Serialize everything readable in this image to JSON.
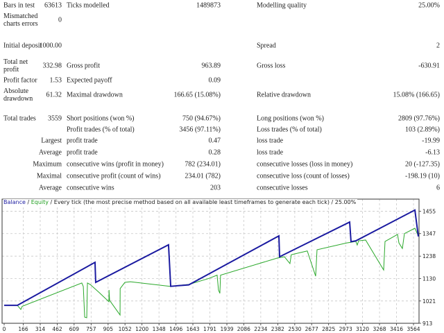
{
  "report": {
    "rows": [
      {
        "label1": "Bars in test",
        "value1": "63613",
        "label2": "Ticks modelled",
        "value2": "1489873",
        "label3": "Modelling quality",
        "value3": "25.00%"
      },
      {
        "label1": "Mismatched charts errors",
        "value1": "0"
      },
      {
        "label1": "Initial deposit",
        "value1": "1000.00",
        "label3": "Spread",
        "value3": "2"
      },
      {
        "label1": "Total net profit",
        "value1": "332.98",
        "label2": "Gross profit",
        "value2": "963.89",
        "label3": "Gross loss",
        "value3": "-630.91"
      },
      {
        "label1": "Profit factor",
        "value1": "1.53",
        "label2": "Expected payoff",
        "value2": "0.09"
      },
      {
        "label1": "Absolute drawdown",
        "value1": "61.32",
        "label2": "Maximal drawdown",
        "value2": "166.65 (15.08%)",
        "label3": "Relative drawdown",
        "value3": "15.08% (166.65)"
      },
      {
        "label1": "Total trades",
        "value1": "3559",
        "label2": "Short positions (won %)",
        "value2": "750 (94.67%)",
        "label3": "Long positions (won %)",
        "value3": "2809 (97.76%)"
      },
      {
        "label2": "Profit trades (% of total)",
        "value2": "3456 (97.11%)",
        "label3": "Loss trades (% of total)",
        "value3": "103 (2.89%)"
      },
      {
        "label1": "Largest",
        "label2": "profit trade",
        "value2": "0.47",
        "label3": "loss trade",
        "value3": "-19.99"
      },
      {
        "label1": "Average",
        "label2": "profit trade",
        "value2": "0.28",
        "label3": "loss trade",
        "value3": "-6.13"
      },
      {
        "label1": "Maximum",
        "label2": "consecutive wins (profit in money)",
        "value2": "782 (234.01)",
        "label3": "consecutive losses (loss in money)",
        "value3": "20 (-127.35)"
      },
      {
        "label1": "Maximal",
        "label2": "consecutive profit (count of wins)",
        "value2": "234.01 (782)",
        "label3": "consecutive loss (count of losses)",
        "value3": "-198.19 (10)"
      },
      {
        "label1": "Average",
        "label2": "consecutive wins",
        "value2": "203",
        "label3": "consecutive losses",
        "value3": "6"
      }
    ]
  },
  "chart_data": {
    "type": "line",
    "legend": {
      "balance": "Balance",
      "sep1": " / ",
      "equity": "Equity",
      "rest": " / Every tick (the most precise method based on all available least timeframes to generate each tick) / 25.00%"
    },
    "legend_placement": "top-left",
    "colors": {
      "balance": "#1a1aa0",
      "equity": "#2aa82a",
      "grid": "#c8c8c8"
    },
    "xlim": [
      0,
      3606
    ],
    "ylim": [
      913,
      1514
    ],
    "grid": true,
    "x_ticks": [
      "0",
      "166",
      "314",
      "462",
      "609",
      "757",
      "905",
      "1052",
      "1200",
      "1348",
      "1496",
      "1643",
      "1791",
      "1939",
      "2086",
      "2234",
      "2382",
      "2530",
      "2677",
      "2825",
      "2973",
      "3120",
      "3268",
      "3416",
      "3564"
    ],
    "y_ticks": [
      "913",
      "1021",
      "1130",
      "1238",
      "1347",
      "1455"
    ],
    "series": [
      {
        "name": "Balance",
        "points": [
          [
            0,
            1000
          ],
          [
            115,
            1000
          ],
          [
            791,
            1208
          ],
          [
            797,
            1111
          ],
          [
            1431,
            1293
          ],
          [
            1450,
            1092
          ],
          [
            1607,
            1099
          ],
          [
            2392,
            1336
          ],
          [
            2398,
            1235
          ],
          [
            3008,
            1403
          ],
          [
            3020,
            1308
          ],
          [
            3062,
            1312
          ],
          [
            3576,
            1461
          ],
          [
            3606,
            1333
          ]
        ]
      },
      {
        "name": "Equity",
        "points": [
          [
            0,
            1000
          ],
          [
            115,
            1000
          ],
          [
            145,
            980
          ],
          [
            157,
            995
          ],
          [
            676,
            1108
          ],
          [
            689,
            1091
          ],
          [
            701,
            943
          ],
          [
            719,
            940
          ],
          [
            725,
            1108
          ],
          [
            749,
            1101
          ],
          [
            827,
            1062
          ],
          [
            912,
            1017
          ],
          [
            913,
            1074
          ],
          [
            918,
            1024
          ],
          [
            1009,
            953
          ],
          [
            1010,
            1081
          ],
          [
            1051,
            1111
          ],
          [
            1099,
            1114
          ],
          [
            1444,
            1092
          ],
          [
            1607,
            1101
          ],
          [
            1776,
            1129
          ],
          [
            1854,
            1146
          ],
          [
            1866,
            1074
          ],
          [
            1878,
            1058
          ],
          [
            1884,
            1146
          ],
          [
            2380,
            1229
          ],
          [
            2440,
            1235
          ],
          [
            2488,
            1202
          ],
          [
            2500,
            1245
          ],
          [
            2639,
            1263
          ],
          [
            2712,
            1141
          ],
          [
            2724,
            1269
          ],
          [
            2984,
            1302
          ],
          [
            3062,
            1309
          ],
          [
            3074,
            1292
          ],
          [
            3086,
            1312
          ],
          [
            3147,
            1316
          ],
          [
            3304,
            1171
          ],
          [
            3316,
            1309
          ],
          [
            3425,
            1343
          ],
          [
            3437,
            1302
          ],
          [
            3467,
            1275
          ],
          [
            3485,
            1347
          ],
          [
            3576,
            1373
          ],
          [
            3606,
            1336
          ]
        ]
      }
    ]
  }
}
